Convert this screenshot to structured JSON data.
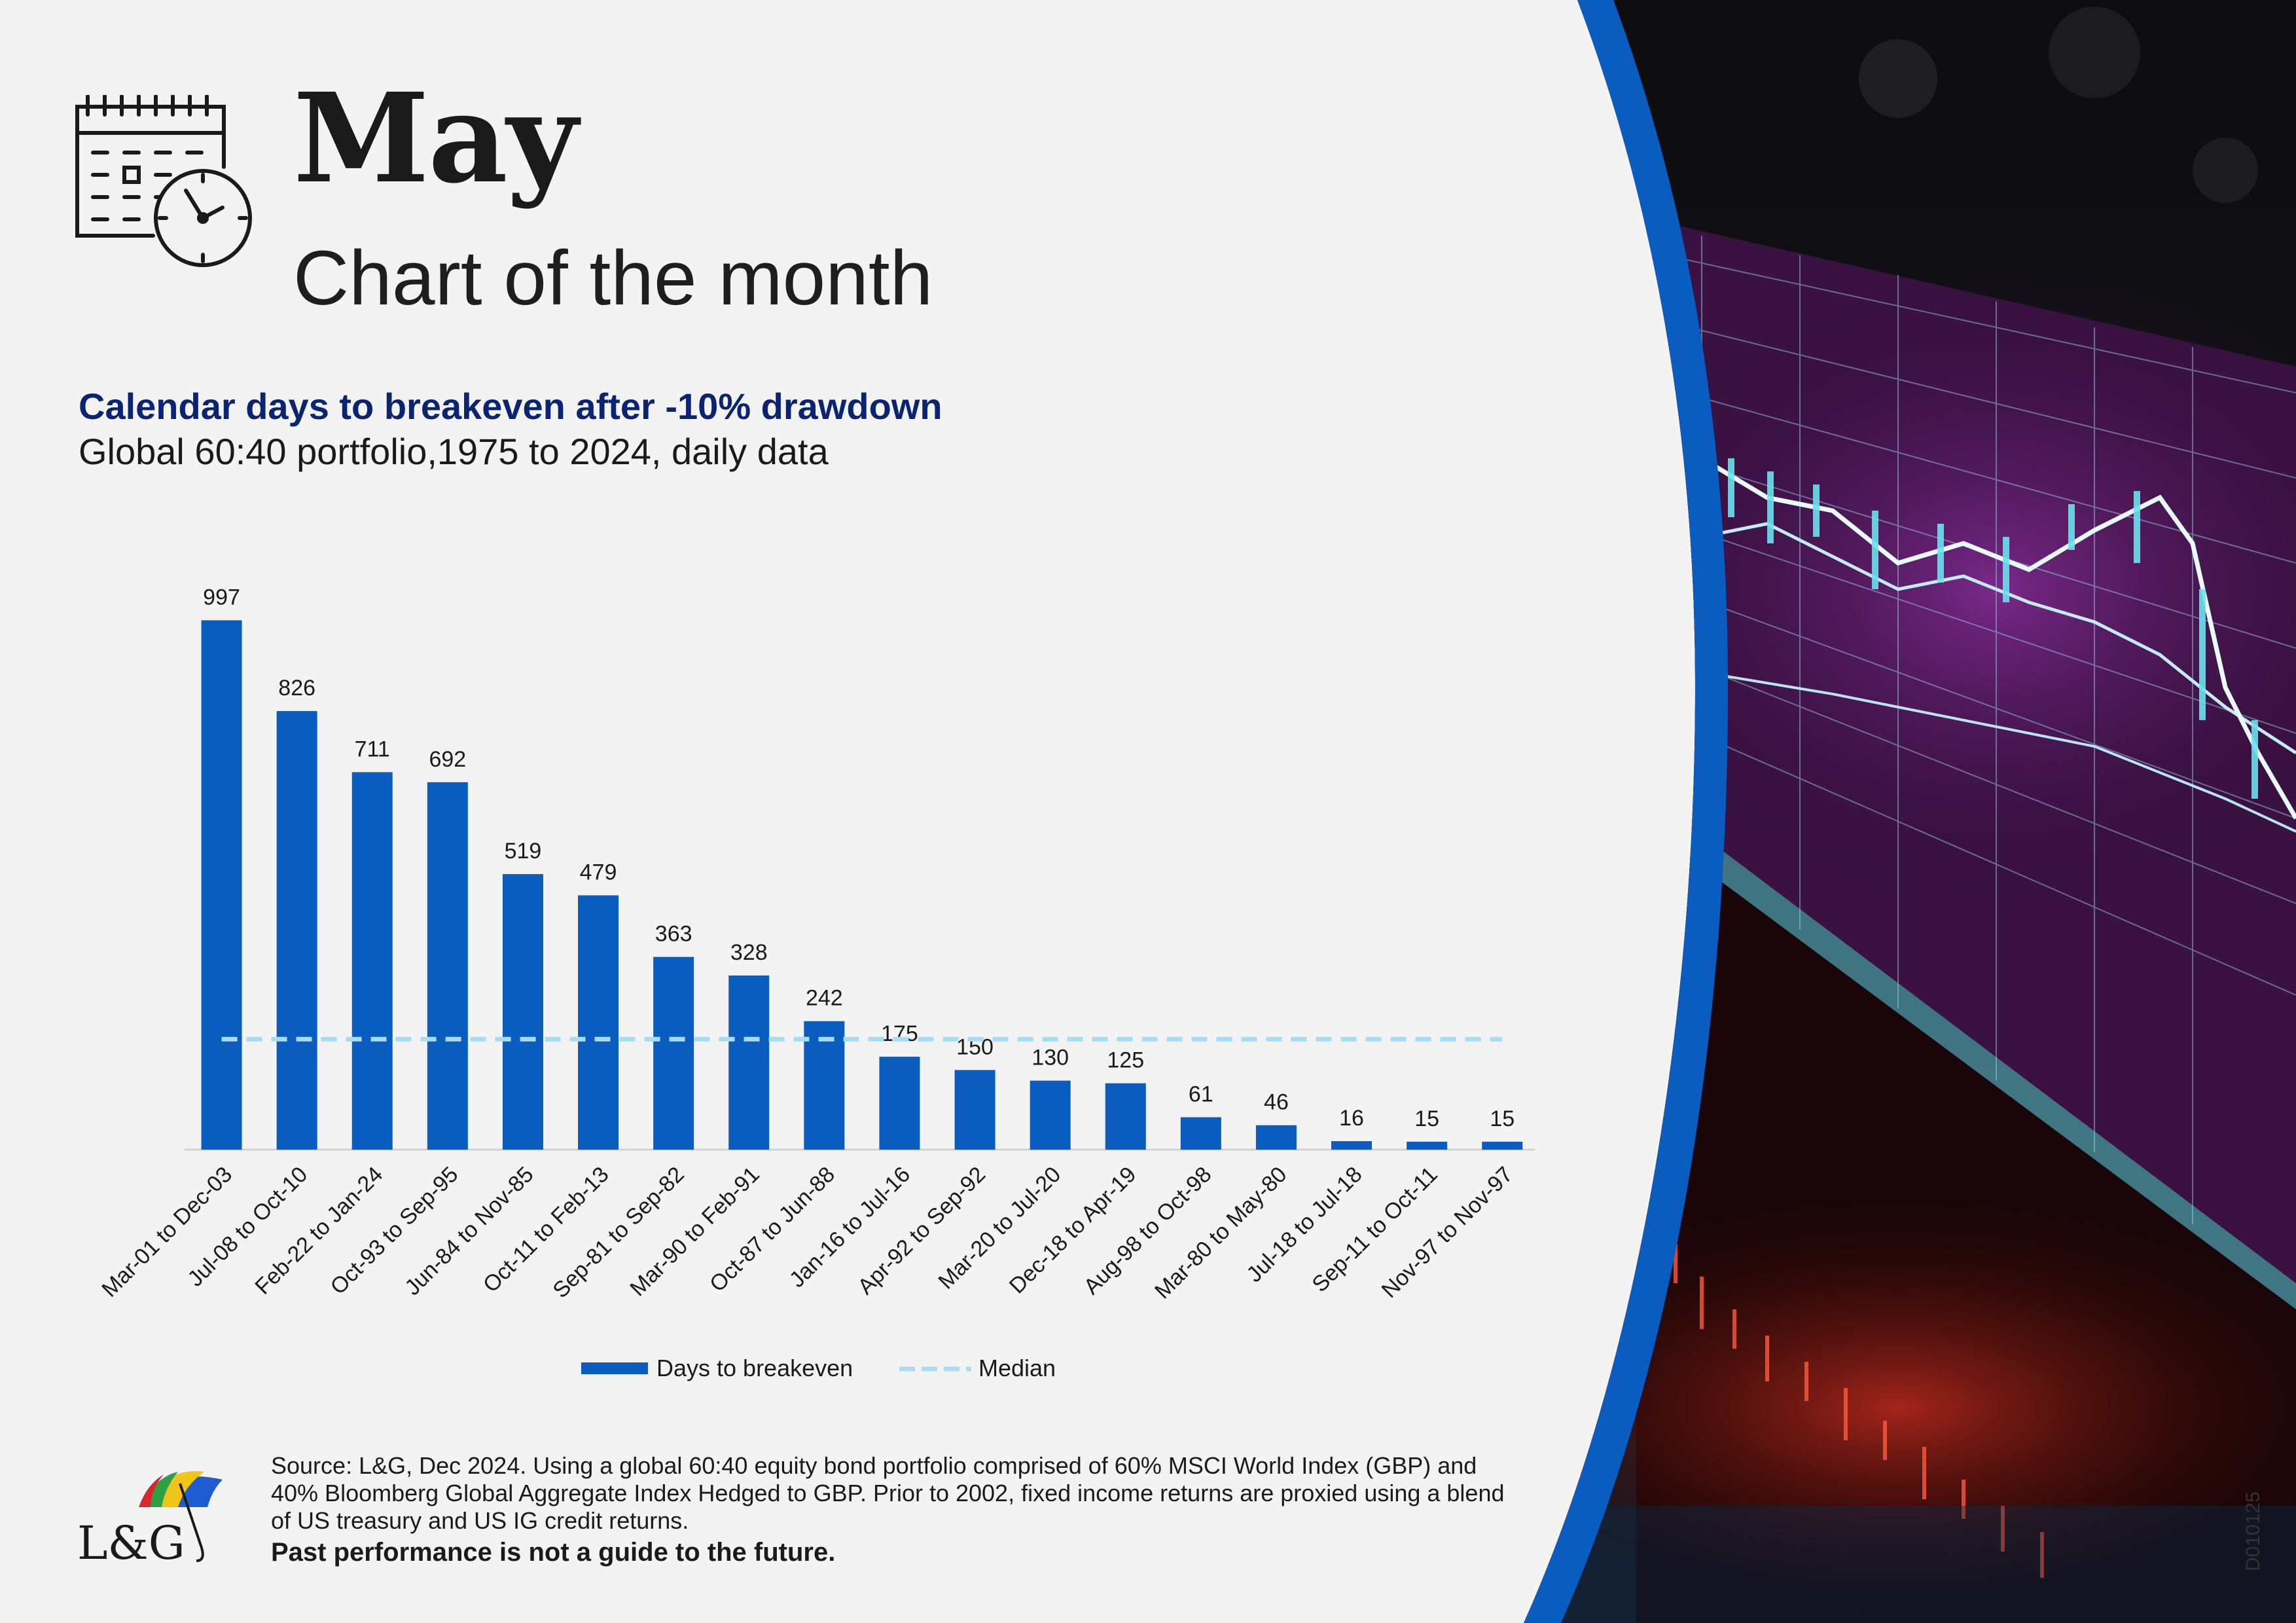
{
  "header": {
    "month": "May",
    "subtitle": "Chart of the month",
    "icon": "calendar-clock-icon"
  },
  "chart_data": {
    "type": "bar",
    "title": "Calendar days to breakeven after -10% drawdown",
    "subtitle": "Global 60:40 portfolio,1975 to 2024, daily data",
    "categories": [
      "Mar-01 to Dec-03",
      "Jul-08 to Oct-10",
      "Feb-22 to Jan-24",
      "Oct-93 to Sep-95",
      "Jun-84 to Nov-85",
      "Oct-11 to Feb-13",
      "Sep-81 to Sep-82",
      "Mar-90 to Feb-91",
      "Oct-87 to Jun-88",
      "Jan-16 to Jul-16",
      "Apr-92 to Sep-92",
      "Mar-20 to Jul-20",
      "Dec-18 to Apr-19",
      "Aug-98 to Oct-98",
      "Mar-80 to May-80",
      "Jul-18 to Jul-18",
      "Sep-11 to Oct-11",
      "Nov-97 to Nov-97"
    ],
    "series": [
      {
        "name": "Days to breakeven",
        "values": [
          997,
          826,
          711,
          692,
          519,
          479,
          363,
          328,
          242,
          175,
          150,
          130,
          125,
          61,
          46,
          16,
          15,
          15
        ],
        "color": "#0a5cbf"
      },
      {
        "name": "Median",
        "values": [
          208,
          208,
          208,
          208,
          208,
          208,
          208,
          208,
          208,
          208,
          208,
          208,
          208,
          208,
          208,
          208,
          208,
          208
        ],
        "color": "#a8dcf2",
        "style": "dashed"
      }
    ],
    "data_labels": [
      "997",
      "826",
      "711",
      "692",
      "519",
      "479",
      "363",
      "328",
      "242",
      "175",
      "150",
      "130",
      "125",
      "61",
      "46",
      "16",
      "15",
      "15"
    ],
    "ylim": [
      0,
      1000
    ],
    "grid": false,
    "legend_position": "bottom"
  },
  "footer": {
    "source": "Source: L&G, Dec 2024. Using a global 60:40 equity bond portfolio comprised of 60% MSCI World Index (GBP) and 40% Bloomberg Global Aggregate Index Hedged to GBP. Prior to 2002, fixed income returns are proxied using a blend of US treasury and US IG credit returns.",
    "disclaimer": "Past performance is not a guide to the future.",
    "logo_text": "L&G",
    "logo_icon": "umbrella-icon",
    "doc_code": "D010125"
  },
  "colors": {
    "accent_blue": "#0a5cbf",
    "title_navy": "#0b2471",
    "median_light_blue": "#a8dcf2",
    "background": "#f3f3f3"
  },
  "image": {
    "description_icon": "trading-screen-image"
  }
}
